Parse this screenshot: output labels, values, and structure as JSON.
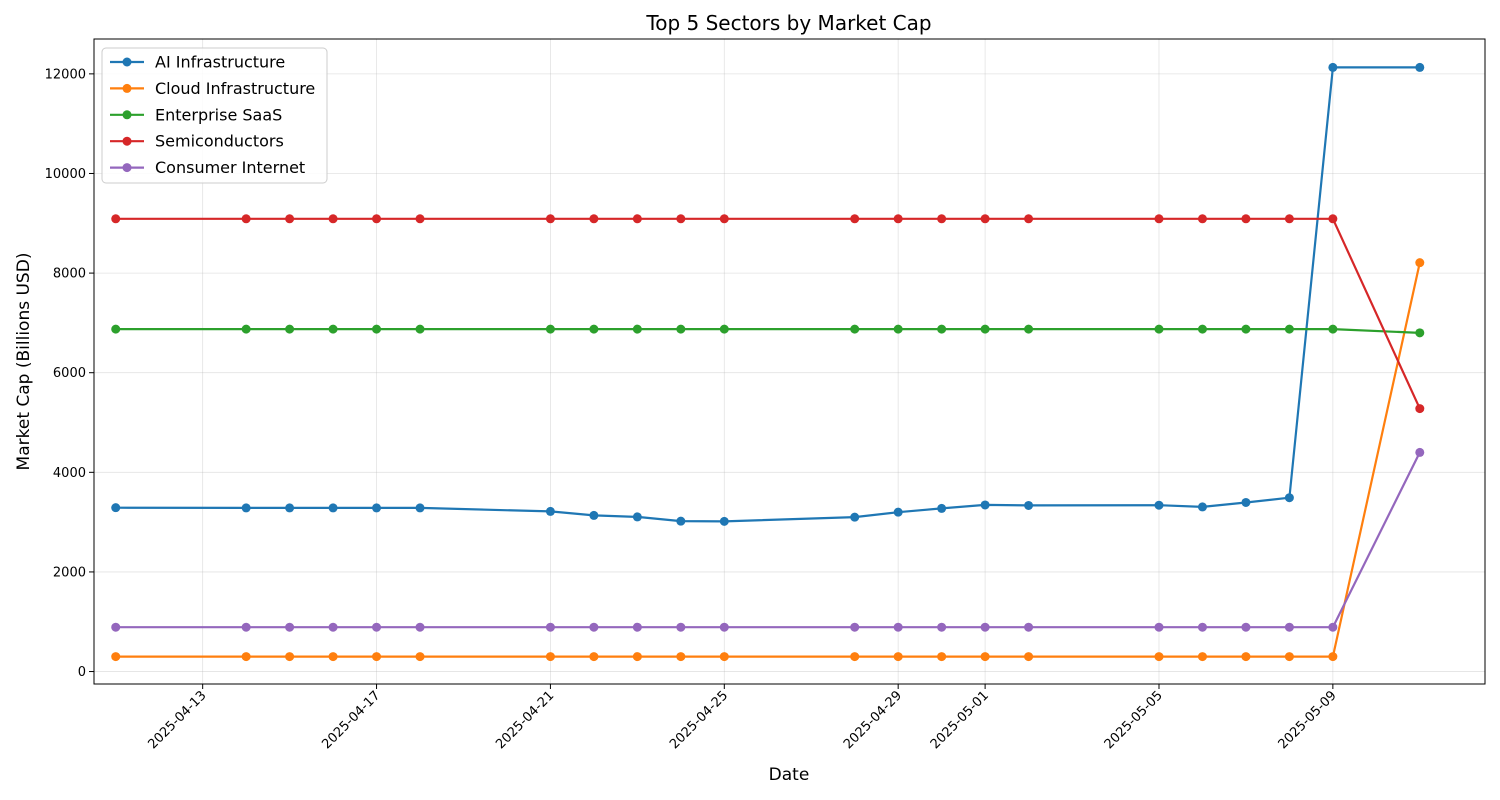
{
  "chart_data": {
    "type": "line",
    "title": "Top 5 Sectors by Market Cap",
    "xlabel": "Date",
    "ylabel": "Market Cap (Billions USD)",
    "x_type": "date",
    "xlim": [
      "2025-04-10T12:00",
      "2025-05-12T12:00"
    ],
    "ylim": [
      -250,
      12700
    ],
    "x_ticks": [
      "2025-04-13",
      "2025-04-17",
      "2025-04-21",
      "2025-04-25",
      "2025-04-29",
      "2025-05-01",
      "2025-05-05",
      "2025-05-09"
    ],
    "y_ticks": [
      0,
      2000,
      4000,
      6000,
      8000,
      10000,
      12000
    ],
    "grid": true,
    "legend_position": "top-left",
    "x": [
      "2025-04-11",
      "2025-04-14",
      "2025-04-15",
      "2025-04-16",
      "2025-04-17",
      "2025-04-18",
      "2025-04-21",
      "2025-04-22",
      "2025-04-23",
      "2025-04-24",
      "2025-04-25",
      "2025-04-28",
      "2025-04-29",
      "2025-04-30",
      "2025-05-01",
      "2025-05-02",
      "2025-05-05",
      "2025-05-06",
      "2025-05-07",
      "2025-05-08",
      "2025-05-09",
      "2025-05-11"
    ],
    "series": [
      {
        "name": "AI Infrastructure",
        "color": "#1f77b4",
        "values": [
          3290,
          3285,
          3285,
          3285,
          3285,
          3285,
          3215,
          3135,
          3105,
          3020,
          3015,
          3100,
          3200,
          3275,
          3345,
          3335,
          3340,
          3305,
          3395,
          3490,
          12130,
          12130
        ]
      },
      {
        "name": "Cloud Infrastructure",
        "color": "#ff7f0e",
        "values": [
          300,
          300,
          300,
          300,
          300,
          300,
          300,
          300,
          300,
          300,
          300,
          300,
          300,
          300,
          300,
          300,
          300,
          300,
          300,
          300,
          300,
          8210
        ]
      },
      {
        "name": "Enterprise SaaS",
        "color": "#2ca02c",
        "values": [
          6875,
          6875,
          6875,
          6875,
          6875,
          6875,
          6875,
          6875,
          6875,
          6875,
          6875,
          6875,
          6875,
          6875,
          6875,
          6875,
          6875,
          6875,
          6875,
          6875,
          6875,
          6800
        ]
      },
      {
        "name": "Semiconductors",
        "color": "#d62728",
        "values": [
          9090,
          9090,
          9090,
          9090,
          9090,
          9090,
          9090,
          9090,
          9090,
          9090,
          9090,
          9090,
          9090,
          9090,
          9090,
          9090,
          9090,
          9090,
          9090,
          9090,
          9090,
          5280
        ]
      },
      {
        "name": "Consumer Internet",
        "color": "#9467bd",
        "values": [
          890,
          890,
          890,
          890,
          890,
          890,
          890,
          890,
          890,
          890,
          890,
          890,
          890,
          890,
          890,
          890,
          890,
          890,
          890,
          890,
          890,
          4400
        ]
      }
    ]
  }
}
